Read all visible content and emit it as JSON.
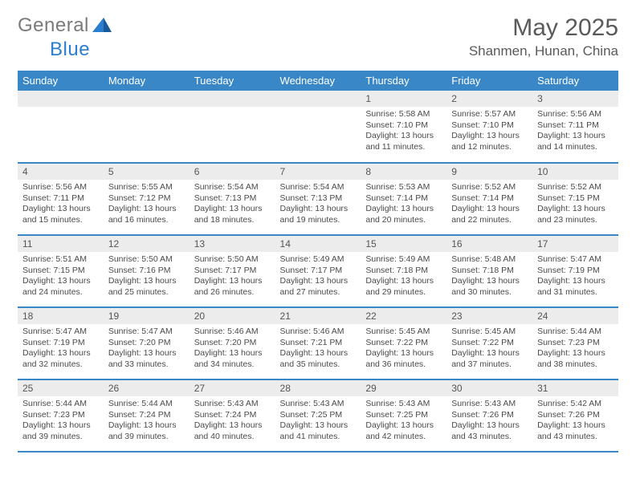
{
  "brand": {
    "text1": "General",
    "text2": "Blue"
  },
  "title": "May 2025",
  "location": "Shanmen, Hunan, China",
  "colors": {
    "header_bg": "#3a87c7",
    "header_text": "#ffffff",
    "daynum_bg": "#ececec",
    "border": "#3a87c7",
    "body_text": "#4a4a4a"
  },
  "day_headers": [
    "Sunday",
    "Monday",
    "Tuesday",
    "Wednesday",
    "Thursday",
    "Friday",
    "Saturday"
  ],
  "weeks": [
    [
      {
        "n": "",
        "sunrise": "",
        "sunset": "",
        "daylight": ""
      },
      {
        "n": "",
        "sunrise": "",
        "sunset": "",
        "daylight": ""
      },
      {
        "n": "",
        "sunrise": "",
        "sunset": "",
        "daylight": ""
      },
      {
        "n": "",
        "sunrise": "",
        "sunset": "",
        "daylight": ""
      },
      {
        "n": "1",
        "sunrise": "Sunrise: 5:58 AM",
        "sunset": "Sunset: 7:10 PM",
        "daylight": "Daylight: 13 hours and 11 minutes."
      },
      {
        "n": "2",
        "sunrise": "Sunrise: 5:57 AM",
        "sunset": "Sunset: 7:10 PM",
        "daylight": "Daylight: 13 hours and 12 minutes."
      },
      {
        "n": "3",
        "sunrise": "Sunrise: 5:56 AM",
        "sunset": "Sunset: 7:11 PM",
        "daylight": "Daylight: 13 hours and 14 minutes."
      }
    ],
    [
      {
        "n": "4",
        "sunrise": "Sunrise: 5:56 AM",
        "sunset": "Sunset: 7:11 PM",
        "daylight": "Daylight: 13 hours and 15 minutes."
      },
      {
        "n": "5",
        "sunrise": "Sunrise: 5:55 AM",
        "sunset": "Sunset: 7:12 PM",
        "daylight": "Daylight: 13 hours and 16 minutes."
      },
      {
        "n": "6",
        "sunrise": "Sunrise: 5:54 AM",
        "sunset": "Sunset: 7:13 PM",
        "daylight": "Daylight: 13 hours and 18 minutes."
      },
      {
        "n": "7",
        "sunrise": "Sunrise: 5:54 AM",
        "sunset": "Sunset: 7:13 PM",
        "daylight": "Daylight: 13 hours and 19 minutes."
      },
      {
        "n": "8",
        "sunrise": "Sunrise: 5:53 AM",
        "sunset": "Sunset: 7:14 PM",
        "daylight": "Daylight: 13 hours and 20 minutes."
      },
      {
        "n": "9",
        "sunrise": "Sunrise: 5:52 AM",
        "sunset": "Sunset: 7:14 PM",
        "daylight": "Daylight: 13 hours and 22 minutes."
      },
      {
        "n": "10",
        "sunrise": "Sunrise: 5:52 AM",
        "sunset": "Sunset: 7:15 PM",
        "daylight": "Daylight: 13 hours and 23 minutes."
      }
    ],
    [
      {
        "n": "11",
        "sunrise": "Sunrise: 5:51 AM",
        "sunset": "Sunset: 7:15 PM",
        "daylight": "Daylight: 13 hours and 24 minutes."
      },
      {
        "n": "12",
        "sunrise": "Sunrise: 5:50 AM",
        "sunset": "Sunset: 7:16 PM",
        "daylight": "Daylight: 13 hours and 25 minutes."
      },
      {
        "n": "13",
        "sunrise": "Sunrise: 5:50 AM",
        "sunset": "Sunset: 7:17 PM",
        "daylight": "Daylight: 13 hours and 26 minutes."
      },
      {
        "n": "14",
        "sunrise": "Sunrise: 5:49 AM",
        "sunset": "Sunset: 7:17 PM",
        "daylight": "Daylight: 13 hours and 27 minutes."
      },
      {
        "n": "15",
        "sunrise": "Sunrise: 5:49 AM",
        "sunset": "Sunset: 7:18 PM",
        "daylight": "Daylight: 13 hours and 29 minutes."
      },
      {
        "n": "16",
        "sunrise": "Sunrise: 5:48 AM",
        "sunset": "Sunset: 7:18 PM",
        "daylight": "Daylight: 13 hours and 30 minutes."
      },
      {
        "n": "17",
        "sunrise": "Sunrise: 5:47 AM",
        "sunset": "Sunset: 7:19 PM",
        "daylight": "Daylight: 13 hours and 31 minutes."
      }
    ],
    [
      {
        "n": "18",
        "sunrise": "Sunrise: 5:47 AM",
        "sunset": "Sunset: 7:19 PM",
        "daylight": "Daylight: 13 hours and 32 minutes."
      },
      {
        "n": "19",
        "sunrise": "Sunrise: 5:47 AM",
        "sunset": "Sunset: 7:20 PM",
        "daylight": "Daylight: 13 hours and 33 minutes."
      },
      {
        "n": "20",
        "sunrise": "Sunrise: 5:46 AM",
        "sunset": "Sunset: 7:20 PM",
        "daylight": "Daylight: 13 hours and 34 minutes."
      },
      {
        "n": "21",
        "sunrise": "Sunrise: 5:46 AM",
        "sunset": "Sunset: 7:21 PM",
        "daylight": "Daylight: 13 hours and 35 minutes."
      },
      {
        "n": "22",
        "sunrise": "Sunrise: 5:45 AM",
        "sunset": "Sunset: 7:22 PM",
        "daylight": "Daylight: 13 hours and 36 minutes."
      },
      {
        "n": "23",
        "sunrise": "Sunrise: 5:45 AM",
        "sunset": "Sunset: 7:22 PM",
        "daylight": "Daylight: 13 hours and 37 minutes."
      },
      {
        "n": "24",
        "sunrise": "Sunrise: 5:44 AM",
        "sunset": "Sunset: 7:23 PM",
        "daylight": "Daylight: 13 hours and 38 minutes."
      }
    ],
    [
      {
        "n": "25",
        "sunrise": "Sunrise: 5:44 AM",
        "sunset": "Sunset: 7:23 PM",
        "daylight": "Daylight: 13 hours and 39 minutes."
      },
      {
        "n": "26",
        "sunrise": "Sunrise: 5:44 AM",
        "sunset": "Sunset: 7:24 PM",
        "daylight": "Daylight: 13 hours and 39 minutes."
      },
      {
        "n": "27",
        "sunrise": "Sunrise: 5:43 AM",
        "sunset": "Sunset: 7:24 PM",
        "daylight": "Daylight: 13 hours and 40 minutes."
      },
      {
        "n": "28",
        "sunrise": "Sunrise: 5:43 AM",
        "sunset": "Sunset: 7:25 PM",
        "daylight": "Daylight: 13 hours and 41 minutes."
      },
      {
        "n": "29",
        "sunrise": "Sunrise: 5:43 AM",
        "sunset": "Sunset: 7:25 PM",
        "daylight": "Daylight: 13 hours and 42 minutes."
      },
      {
        "n": "30",
        "sunrise": "Sunrise: 5:43 AM",
        "sunset": "Sunset: 7:26 PM",
        "daylight": "Daylight: 13 hours and 43 minutes."
      },
      {
        "n": "31",
        "sunrise": "Sunrise: 5:42 AM",
        "sunset": "Sunset: 7:26 PM",
        "daylight": "Daylight: 13 hours and 43 minutes."
      }
    ]
  ]
}
